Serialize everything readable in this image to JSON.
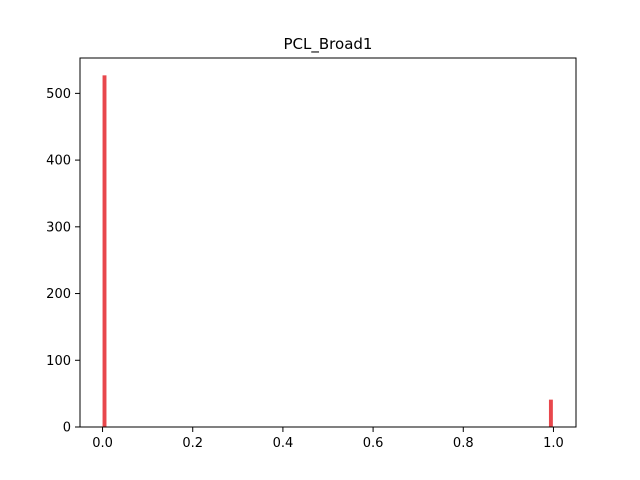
{
  "chart_data": {
    "type": "bar",
    "title": "PCL_Broad1",
    "xlabel": "",
    "ylabel": "",
    "xlim": [
      -0.05,
      1.05
    ],
    "ylim": [
      0,
      553
    ],
    "x_ticks": [
      0.0,
      0.2,
      0.4,
      0.6,
      0.8,
      1.0
    ],
    "x_tick_labels": [
      "0.0",
      "0.2",
      "0.4",
      "0.6",
      "0.8",
      "1.0"
    ],
    "y_ticks": [
      0,
      100,
      200,
      300,
      400,
      500
    ],
    "y_tick_labels": [
      "0",
      "100",
      "200",
      "300",
      "400",
      "500"
    ],
    "bin_width": 0.01,
    "bars": [
      {
        "x": 0.0,
        "value": 527
      },
      {
        "x": 0.99,
        "value": 41
      }
    ],
    "grid": false,
    "bar_color": "#e8474c"
  }
}
